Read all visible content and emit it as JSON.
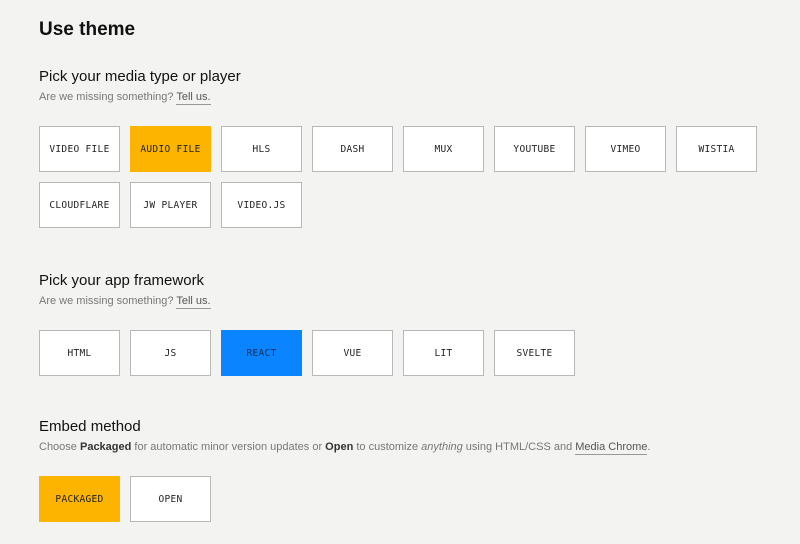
{
  "title": "Use theme",
  "media": {
    "heading": "Pick your media type or player",
    "sub_text": "Are we missing something?",
    "sub_link": "Tell us.",
    "options": [
      "VIDEO FILE",
      "AUDIO FILE",
      "HLS",
      "DASH",
      "MUX",
      "YOUTUBE",
      "VIMEO",
      "WISTIA",
      "CLOUDFLARE",
      "JW PLAYER",
      "VIDEO.JS"
    ],
    "selected": "AUDIO FILE"
  },
  "framework": {
    "heading": "Pick your app framework",
    "sub_text": "Are we missing something?",
    "sub_link": "Tell us.",
    "options": [
      "HTML",
      "JS",
      "REACT",
      "VUE",
      "LIT",
      "SVELTE"
    ],
    "selected": "REACT"
  },
  "embed": {
    "heading": "Embed method",
    "desc": {
      "p1": "Choose ",
      "b1": "Packaged",
      "p2": " for automatic minor version updates or ",
      "b2": "Open",
      "p3": " to customize ",
      "i1": "anything",
      "p4": " using HTML/CSS and ",
      "link": "Media Chrome",
      "p5": "."
    },
    "options": [
      "PACKAGED",
      "OPEN"
    ],
    "selected": "PACKAGED"
  },
  "colors": {
    "selected_yellow": "#fdb400",
    "selected_blue": "#0a84ff",
    "background": "#f3f4f2"
  }
}
